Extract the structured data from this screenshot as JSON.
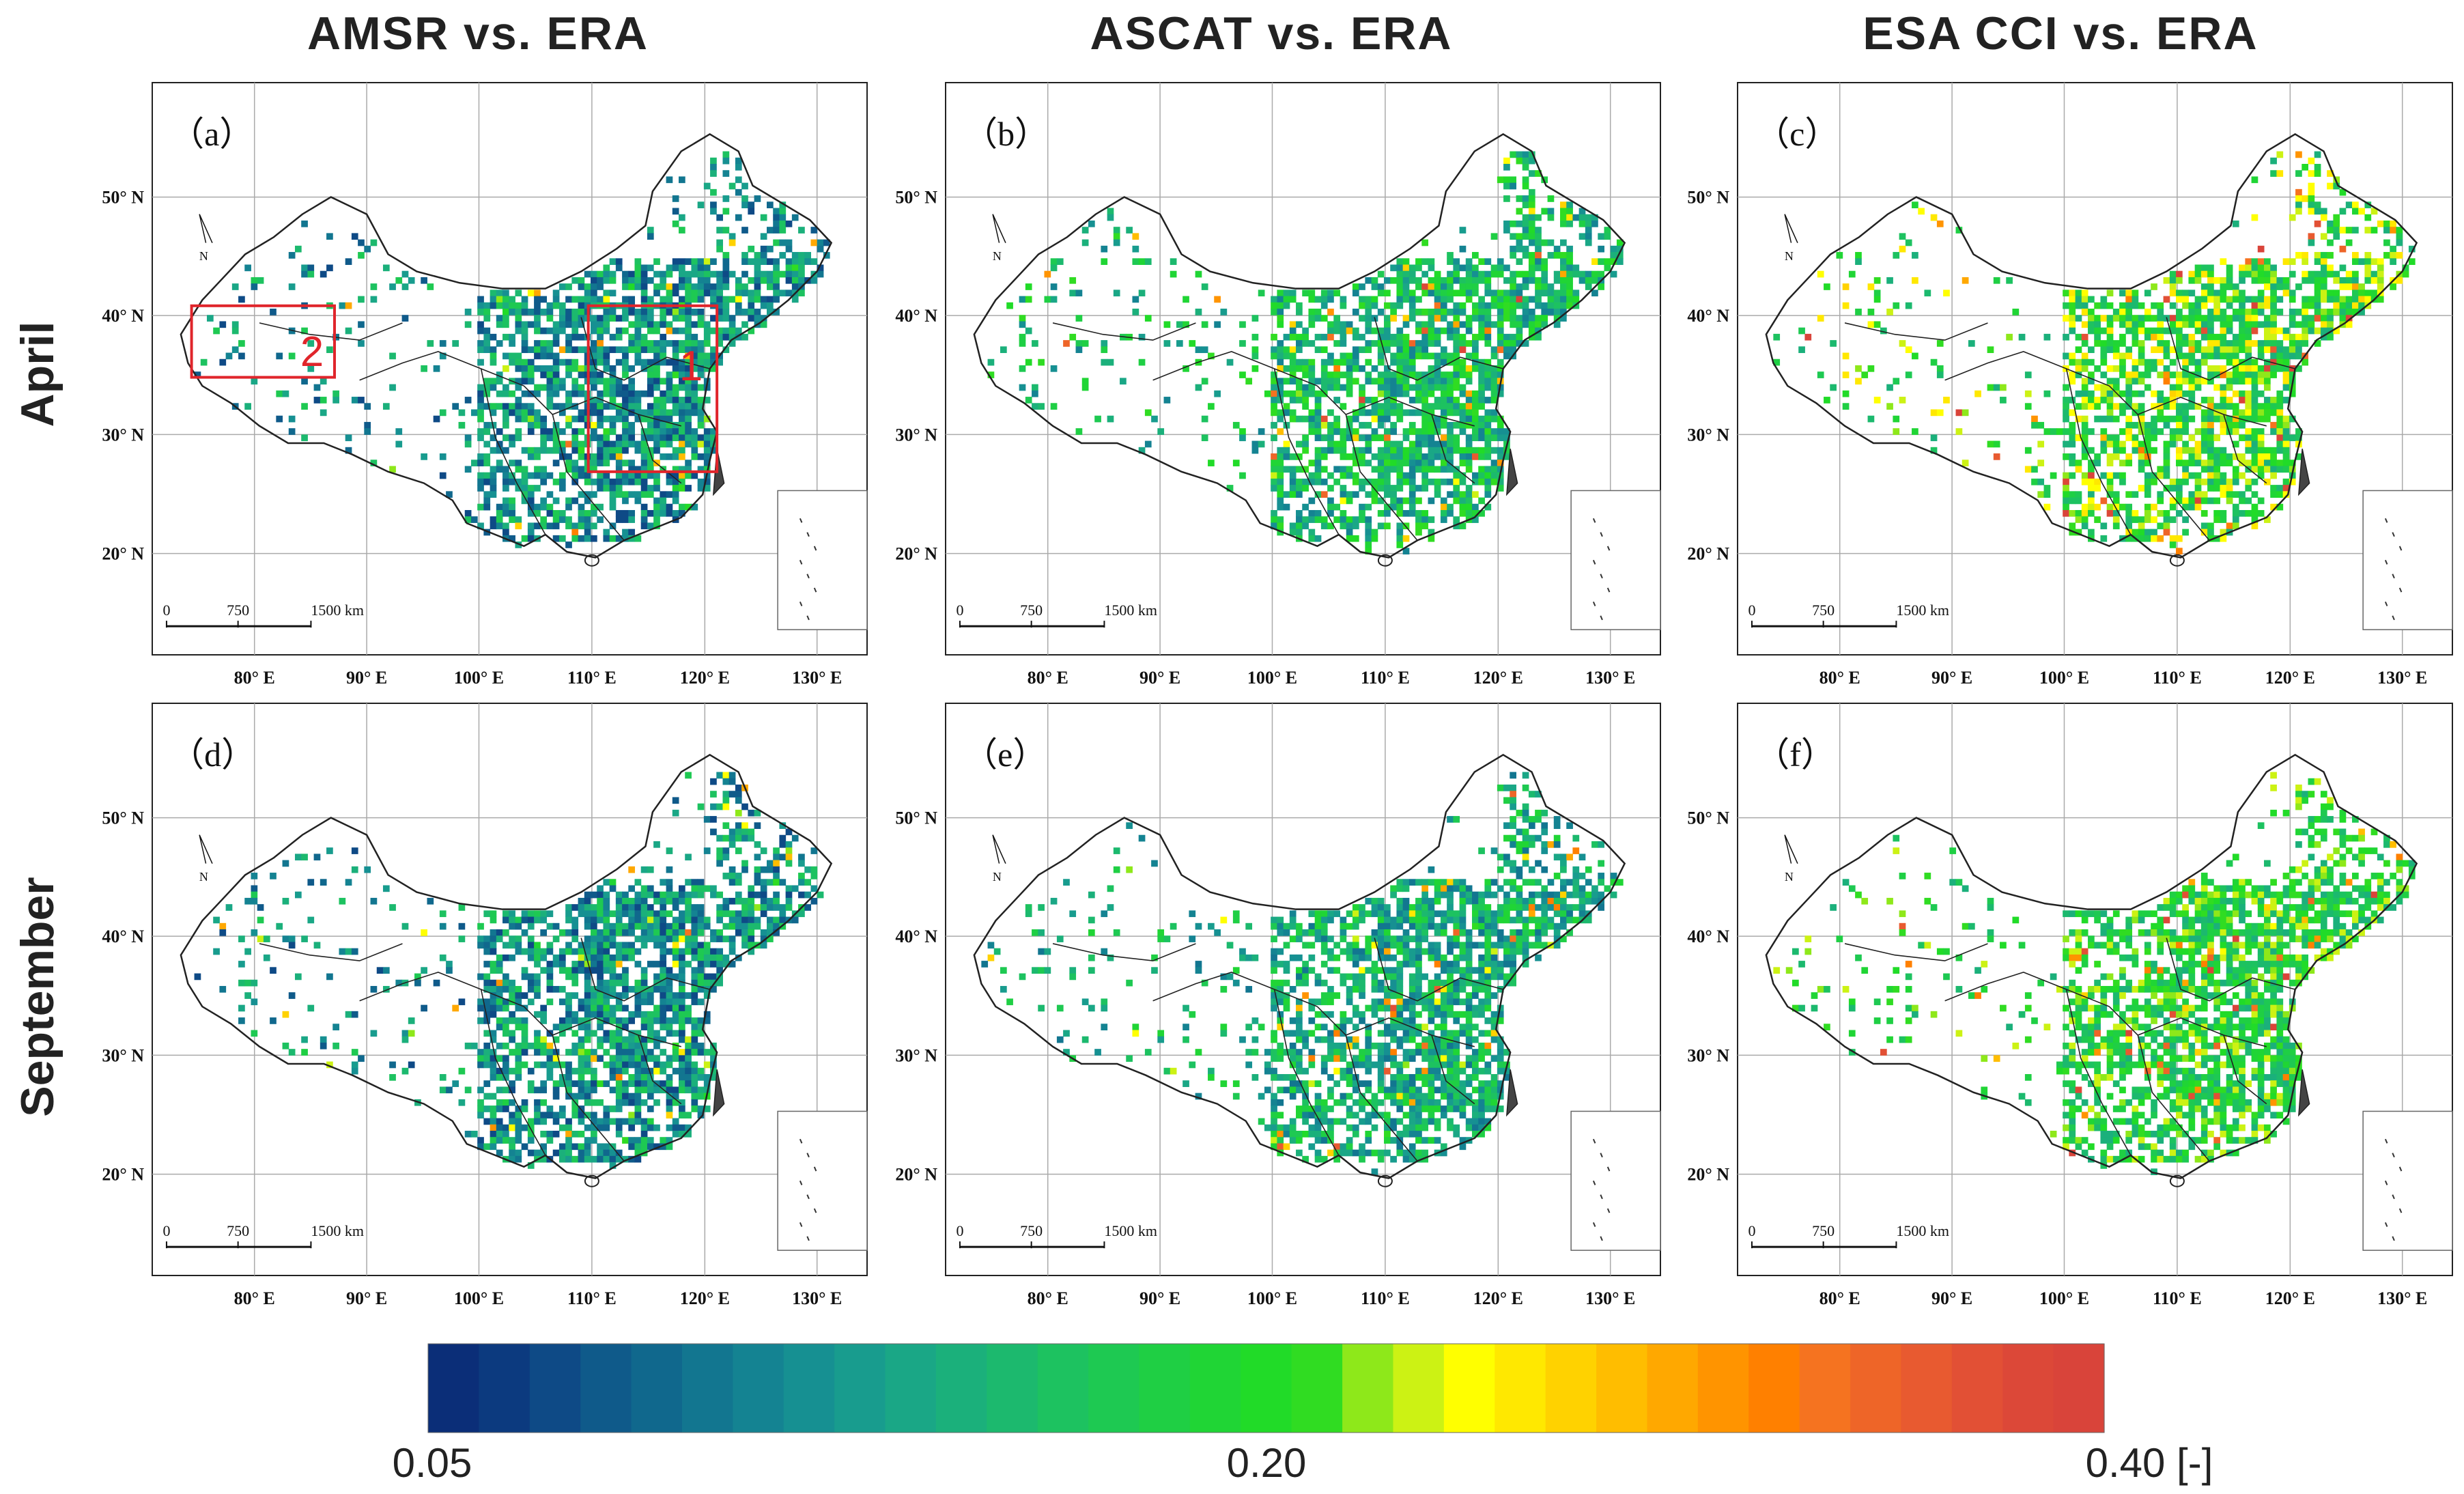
{
  "figure": {
    "column_titles": [
      "AMSR vs. ERA",
      "ASCAT vs. ERA",
      "ESA CCI vs. ERA"
    ],
    "row_titles": [
      "April",
      "September"
    ],
    "panel_labels": [
      "（a）",
      "（b）",
      "（c）",
      "（d）",
      "（e）",
      "（f）"
    ],
    "lat_ticks": [
      "50° N",
      "40° N",
      "30° N",
      "20° N"
    ],
    "lon_ticks": [
      "80° E",
      "90° E",
      "100° E",
      "110° E",
      "120° E",
      "130° E"
    ],
    "scale_bar": [
      "0",
      "750",
      "1500 km"
    ],
    "north_label": "N",
    "region_labels": [
      "1",
      "2"
    ],
    "colorbar": {
      "min_label": "0.05",
      "mid_label": "0.20",
      "max_label": "0.40 [-]",
      "range": [
        0.05,
        0.4
      ],
      "colors": [
        "#0b2e78",
        "#0c3a7f",
        "#0e4a86",
        "#0f5a8a",
        "#10688d",
        "#127690",
        "#148392",
        "#169092",
        "#189c8e",
        "#1aa786",
        "#1bb07b",
        "#1cb96e",
        "#1dc260",
        "#1ec952",
        "#1fcf44",
        "#20d535",
        "#21db28",
        "#30dc22",
        "#8ee81a",
        "#ccf214",
        "#ffff00",
        "#ffe800",
        "#ffd200",
        "#ffbd00",
        "#ffa800",
        "#ff9400",
        "#ff8000",
        "#f57320",
        "#ee6528",
        "#e85a30",
        "#e25035",
        "#dc4838",
        "#d9443a"
      ]
    },
    "colors": {
      "region_box": "#e0252b",
      "border": "#222222",
      "grid": "#aaaaaa"
    }
  }
}
